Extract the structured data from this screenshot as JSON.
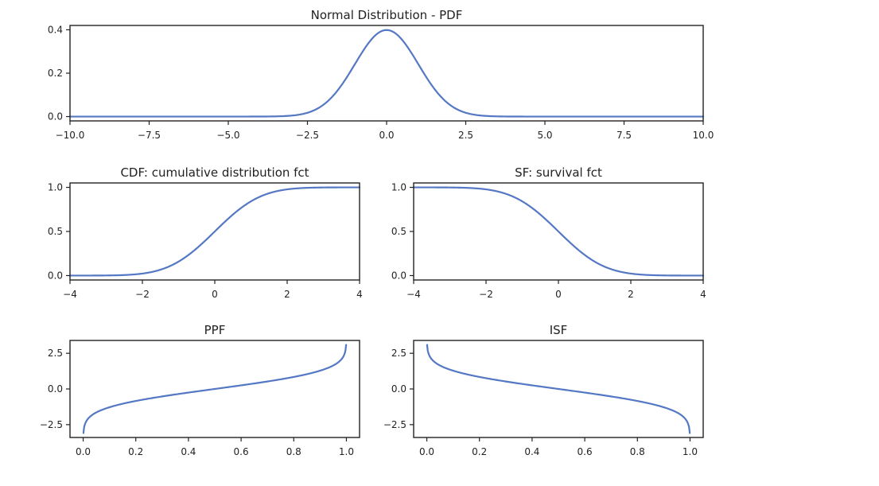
{
  "colors": {
    "line": "#5578c4",
    "frame": "#222222",
    "background": "#ffffff"
  },
  "chart_data": [
    {
      "id": "pdf",
      "type": "line",
      "title": "Normal Distribution - PDF",
      "function": "pdf",
      "xlim": [
        -10,
        10
      ],
      "ylim": [
        -0.02,
        0.42
      ],
      "xticks": [
        -10,
        -7.5,
        -5,
        -2.5,
        0,
        2.5,
        5,
        7.5,
        10
      ],
      "xtick_labels": [
        "−10.0",
        "−7.5",
        "−5.0",
        "−2.5",
        "0.0",
        "2.5",
        "5.0",
        "7.5",
        "10.0"
      ],
      "yticks": [
        0,
        0.2,
        0.4
      ],
      "ytick_labels": [
        "0.0",
        "0.2",
        "0.4"
      ],
      "series": [
        {
          "x_range": [
            -10,
            10
          ]
        }
      ]
    },
    {
      "id": "cdf",
      "type": "line",
      "title": "CDF: cumulative distribution fct",
      "function": "cdf",
      "xlim": [
        -4,
        4
      ],
      "ylim": [
        -0.05,
        1.05
      ],
      "xticks": [
        -4,
        -2,
        0,
        2,
        4
      ],
      "xtick_labels": [
        "−4",
        "−2",
        "0",
        "2",
        "4"
      ],
      "yticks": [
        0,
        0.5,
        1
      ],
      "ytick_labels": [
        "0.0",
        "0.5",
        "1.0"
      ],
      "series": [
        {
          "x_range": [
            -4,
            4
          ]
        }
      ]
    },
    {
      "id": "sf",
      "type": "line",
      "title": "SF: survival fct",
      "function": "sf",
      "xlim": [
        -4,
        4
      ],
      "ylim": [
        -0.05,
        1.05
      ],
      "xticks": [
        -4,
        -2,
        0,
        2,
        4
      ],
      "xtick_labels": [
        "−4",
        "−2",
        "0",
        "2",
        "4"
      ],
      "yticks": [
        0,
        0.5,
        1
      ],
      "ytick_labels": [
        "0.0",
        "0.5",
        "1.0"
      ],
      "series": [
        {
          "x_range": [
            -4,
            4
          ]
        }
      ]
    },
    {
      "id": "ppf",
      "type": "line",
      "title": "PPF",
      "function": "ppf",
      "xlim": [
        -0.05,
        1.05
      ],
      "ylim": [
        -3.4,
        3.4
      ],
      "xticks": [
        0,
        0.2,
        0.4,
        0.6,
        0.8,
        1.0
      ],
      "xtick_labels": [
        "0.0",
        "0.2",
        "0.4",
        "0.6",
        "0.8",
        "1.0"
      ],
      "yticks": [
        -2.5,
        0,
        2.5
      ],
      "ytick_labels": [
        "−2.5",
        "0.0",
        "2.5"
      ],
      "series": [
        {
          "x_range": [
            0.001,
            0.999
          ]
        }
      ]
    },
    {
      "id": "isf",
      "type": "line",
      "title": "ISF",
      "function": "isf",
      "xlim": [
        -0.05,
        1.05
      ],
      "ylim": [
        -3.4,
        3.4
      ],
      "xticks": [
        0,
        0.2,
        0.4,
        0.6,
        0.8,
        1.0
      ],
      "xtick_labels": [
        "0.0",
        "0.2",
        "0.4",
        "0.6",
        "0.8",
        "1.0"
      ],
      "yticks": [
        -2.5,
        0,
        2.5
      ],
      "ytick_labels": [
        "−2.5",
        "0.0",
        "2.5"
      ],
      "series": [
        {
          "x_range": [
            0.001,
            0.999
          ]
        }
      ]
    }
  ]
}
